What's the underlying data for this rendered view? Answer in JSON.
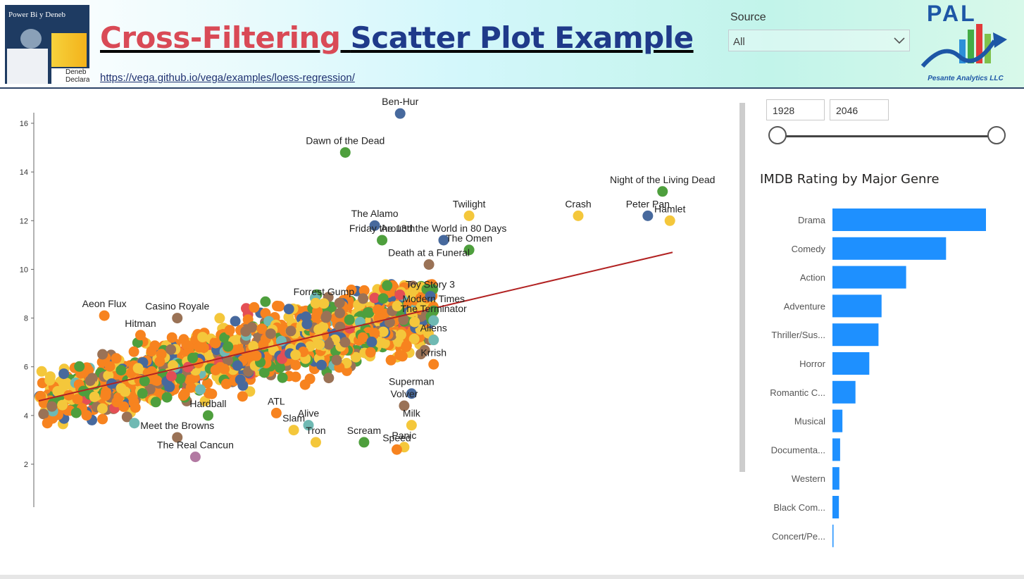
{
  "header": {
    "thumbnail": {
      "title": "Power Bi y Deneb",
      "caption": "Deneb Declarative"
    },
    "title_part1": "Cross-Filtering ",
    "title_part2": "Scatter Plot Example",
    "url": "https://vega.github.io/vega/examples/loess-regression/",
    "logo": {
      "text": "PAL",
      "subtitle": "Pesante Analytics LLC"
    }
  },
  "source_filter": {
    "label": "Source",
    "selected": "All",
    "icon": "chevron-down-icon"
  },
  "year_range": {
    "min": "1928",
    "max": "2046",
    "min_fraction": 0.0,
    "max_fraction": 1.0
  },
  "colors": {
    "accent_blue": "#1e90ff",
    "regression": "#b22222",
    "scatter_palette": [
      "#f7831f",
      "#f4c73b",
      "#4e9f3d",
      "#47699d",
      "#9a7256",
      "#e44f55",
      "#6fb9b3",
      "#b279a2"
    ]
  },
  "bar_chart": {
    "title": "IMDB Rating by Major Genre",
    "categories": [
      "Drama",
      "Comedy",
      "Action",
      "Adventure",
      "Thriller/Sus...",
      "Horror",
      "Romantic C...",
      "Musical",
      "Documenta...",
      "Western",
      "Black Com...",
      "Concert/Pe..."
    ],
    "values": [
      100,
      74,
      48,
      32,
      30,
      24,
      15,
      6.5,
      5,
      4.5,
      4.2,
      0.5
    ]
  },
  "chart_data": {
    "type": "scatter",
    "title": "",
    "xlabel": "",
    "ylabel": "",
    "ylim": [
      0.6,
      16.8
    ],
    "xlim": [
      0,
      1000
    ],
    "y_ticks": [
      "16",
      "14",
      "12",
      "10",
      "8",
      "6",
      "4",
      "2"
    ],
    "labeled_points": [
      {
        "label": "Ben-Hur",
        "x": 540,
        "y": 16.4,
        "c": 3
      },
      {
        "label": "Dawn of the Dead",
        "x": 458,
        "y": 14.8,
        "c": 2
      },
      {
        "label": "Peter Pan",
        "x": 910,
        "y": 12.2,
        "c": 3
      },
      {
        "label": "Night of the Living Dead",
        "x": 932,
        "y": 13.2,
        "c": 2
      },
      {
        "label": "Twilight",
        "x": 643,
        "y": 12.2,
        "c": 1
      },
      {
        "label": "Crash",
        "x": 806,
        "y": 12.2,
        "c": 1
      },
      {
        "label": "Hamlet",
        "x": 943,
        "y": 12.0,
        "c": 1
      },
      {
        "label": "The Alamo",
        "x": 502,
        "y": 11.8,
        "c": 3
      },
      {
        "label": "Around the World in 80 Days",
        "x": 605,
        "y": 11.2,
        "c": 3
      },
      {
        "label": "Friday the 13th",
        "x": 513,
        "y": 11.2,
        "c": 2
      },
      {
        "label": "The Omen",
        "x": 643,
        "y": 10.8,
        "c": 2
      },
      {
        "label": "Death at a Funeral",
        "x": 583,
        "y": 10.2,
        "c": 4
      },
      {
        "label": "Toy Story 3",
        "x": 585,
        "y": 8.9,
        "c": 3
      },
      {
        "label": "Aeon Flux",
        "x": 98,
        "y": 8.1,
        "c": 0
      },
      {
        "label": "Casino Royale",
        "x": 207,
        "y": 8.0,
        "c": 4
      },
      {
        "label": "Forrest Gump",
        "x": 426,
        "y": 8.6,
        "c": 1
      },
      {
        "label": "Modern Times",
        "x": 590,
        "y": 8.3,
        "c": 2
      },
      {
        "label": "The Terminator",
        "x": 590,
        "y": 7.9,
        "c": 6
      },
      {
        "label": "Hitman",
        "x": 152,
        "y": 7.3,
        "c": 0
      },
      {
        "label": "Aliens",
        "x": 590,
        "y": 7.1,
        "c": 6
      },
      {
        "label": "Krrish",
        "x": 590,
        "y": 6.1,
        "c": 0
      },
      {
        "label": "Superman",
        "x": 557,
        "y": 4.9,
        "c": 3
      },
      {
        "label": "Volver",
        "x": 546,
        "y": 4.4,
        "c": 4
      },
      {
        "label": "ATL",
        "x": 355,
        "y": 4.1,
        "c": 0
      },
      {
        "label": "Hardball",
        "x": 253,
        "y": 4.0,
        "c": 2
      },
      {
        "label": "Alive",
        "x": 403,
        "y": 3.6,
        "c": 6
      },
      {
        "label": "Slam",
        "x": 381,
        "y": 3.4,
        "c": 1
      },
      {
        "label": "Scream",
        "x": 486,
        "y": 2.9,
        "c": 2
      },
      {
        "label": "Milk",
        "x": 557,
        "y": 3.6,
        "c": 1
      },
      {
        "label": "Meet the Browns",
        "x": 207,
        "y": 3.1,
        "c": 4
      },
      {
        "label": "Tron",
        "x": 414,
        "y": 2.9,
        "c": 1
      },
      {
        "label": "Panic",
        "x": 546,
        "y": 2.7,
        "c": 1
      },
      {
        "label": "Speed",
        "x": 535,
        "y": 2.6,
        "c": 0
      },
      {
        "label": "The Real Cancun",
        "x": 234,
        "y": 2.3,
        "c": 7
      }
    ],
    "regression": {
      "x": [
        0,
        947
      ],
      "y": [
        4.6,
        10.7
      ]
    },
    "cloud": {
      "count": 1400,
      "x_range": [
        0,
        590
      ],
      "note": "dense cluster of unlabeled movie points along the trend"
    }
  }
}
